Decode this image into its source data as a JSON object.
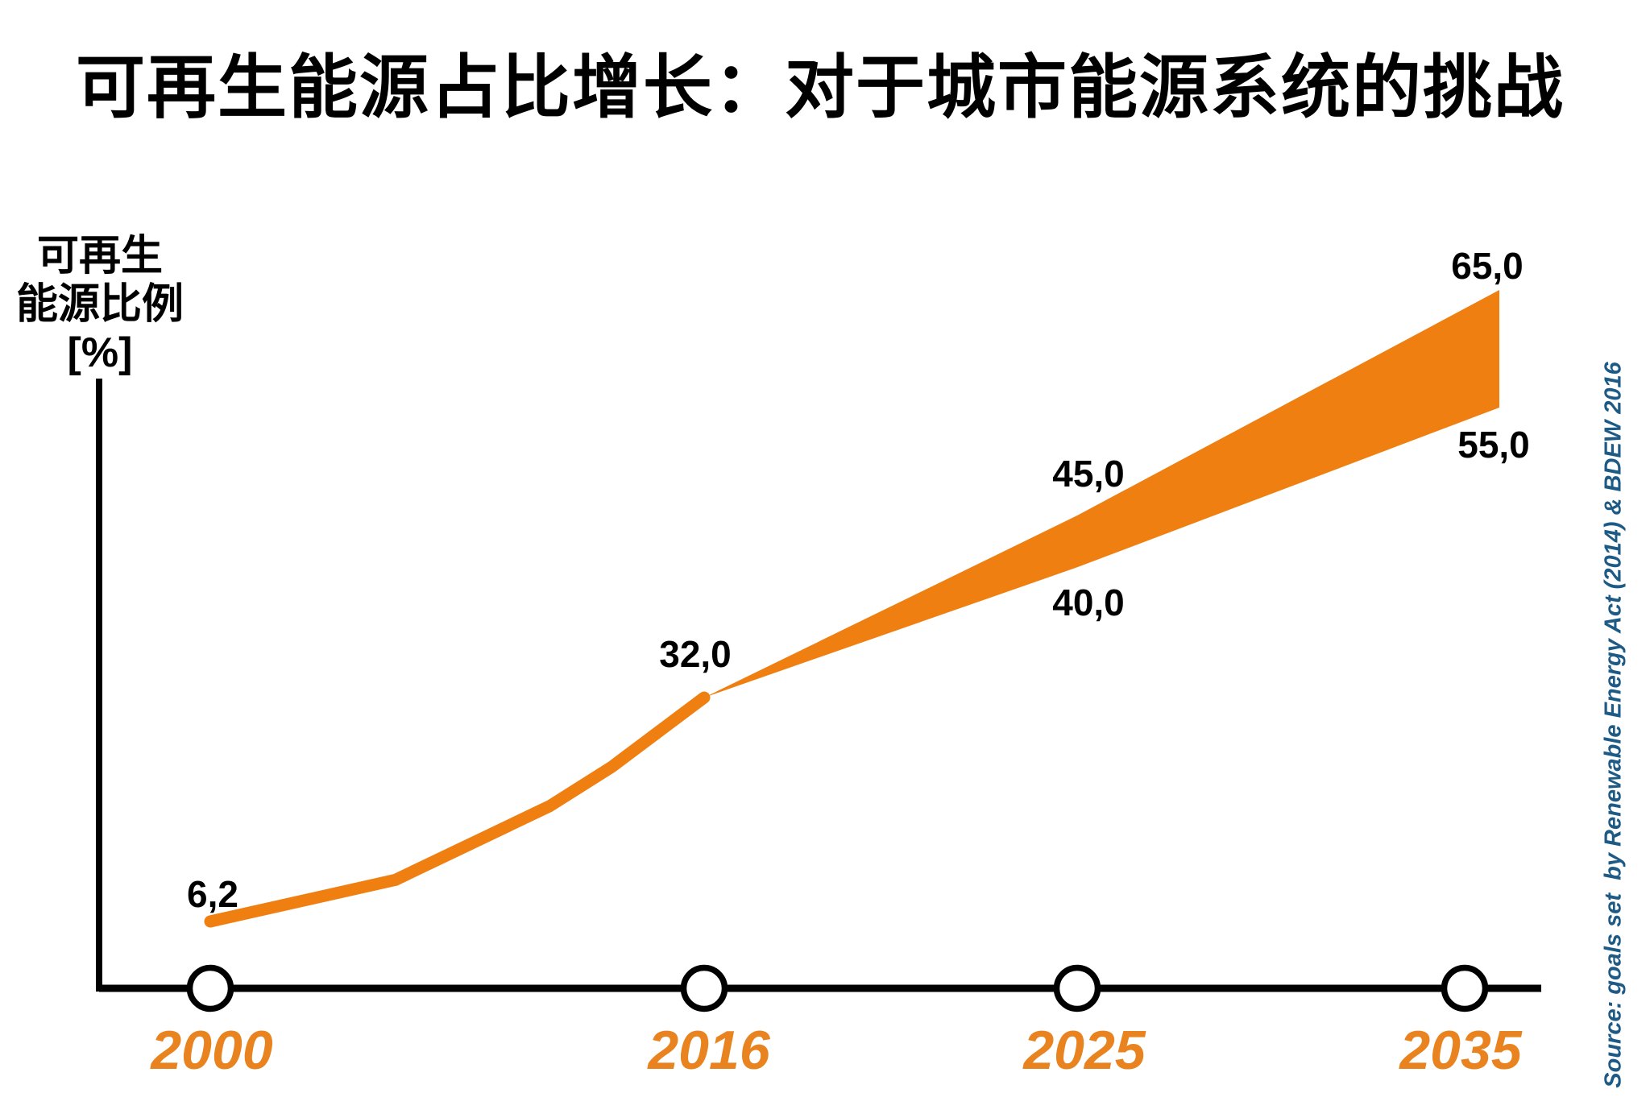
{
  "title": "可再生能源占比增长：对于城市能源系统的挑战",
  "y_axis": {
    "line1": "可再生",
    "line2": "能源比例",
    "line3": "[%]"
  },
  "source_note": "Source: goals set  by Renewable Energy Act (2014) & BDEW 2016",
  "colors": {
    "orange": "#EE7F10",
    "year_orange": "#E8831F",
    "source_blue": "#1D5A85",
    "axis_black": "#000000"
  },
  "chart_data": {
    "type": "line",
    "title": "可再生能源占比增长：对于城市能源系统的挑战",
    "ylabel": "可再生能源比例 [%]",
    "xlabel": "",
    "grid": false,
    "legend_position": "none",
    "x_ticks": [
      2000,
      2016,
      2025,
      2035
    ],
    "ylim": [
      0,
      70
    ],
    "series": [
      {
        "name": "historical_renewable_share",
        "type": "line",
        "points": [
          [
            2000,
            6.2
          ],
          [
            2006,
            11.0
          ],
          [
            2011,
            19.5
          ],
          [
            2013,
            24.0
          ],
          [
            2016,
            32.0
          ]
        ]
      },
      {
        "name": "target_range_band",
        "type": "band",
        "points": [
          {
            "year": 2016,
            "low": 32.0,
            "high": 32.0
          },
          {
            "year": 2025,
            "low": 40.0,
            "high": 45.0
          },
          {
            "year": 2035,
            "low": 55.0,
            "high": 65.0
          }
        ]
      }
    ],
    "point_labels": {
      "v2000": "6,2",
      "v2016": "32,0",
      "v2025_high": "45,0",
      "v2025_low": "40,0",
      "v2035_high": "65,0",
      "v2035_low": "55,0"
    }
  }
}
